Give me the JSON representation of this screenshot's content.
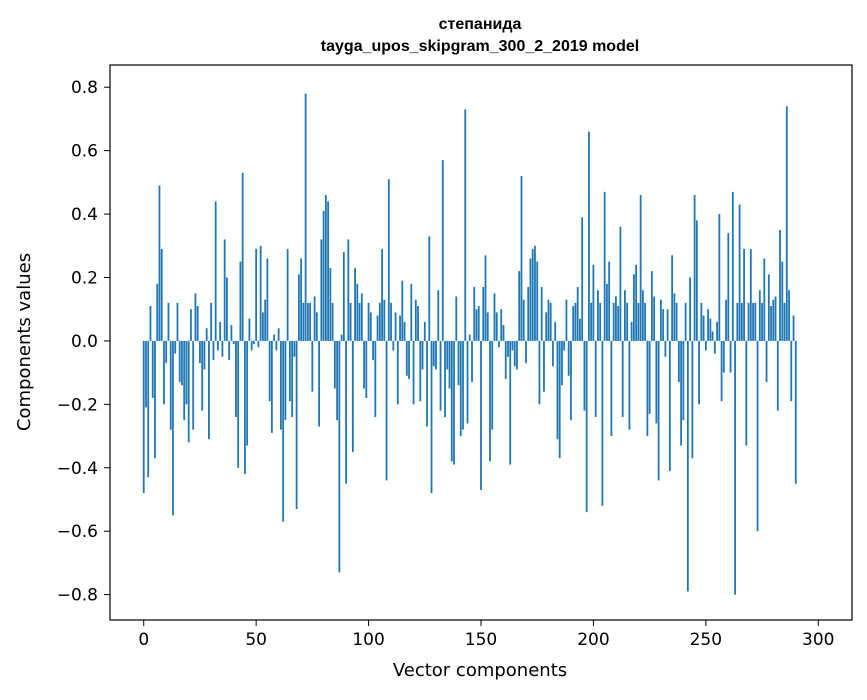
{
  "chart_data": {
    "type": "bar",
    "title": "степанида",
    "subtitle": "tayga_upos_skipgram_300_2_2019 model",
    "xlabel": "Vector components",
    "ylabel": "Components values",
    "xlim": [
      -15,
      315
    ],
    "ylim": [
      -0.88,
      0.87
    ],
    "xticks": [
      0,
      50,
      100,
      150,
      200,
      250,
      300
    ],
    "yticks": [
      -0.8,
      -0.6,
      -0.4,
      -0.2,
      0.0,
      0.2,
      0.4,
      0.6,
      0.8
    ],
    "xtick_labels": [
      "0",
      "50",
      "100",
      "150",
      "200",
      "250",
      "300"
    ],
    "ytick_labels": [
      "−0.8",
      "−0.6",
      "−0.4",
      "−0.2",
      "0.0",
      "0.2",
      "0.4",
      "0.6",
      "0.8"
    ],
    "grid": false,
    "bar_color": "#1f77b4",
    "values": [
      -0.48,
      -0.21,
      -0.43,
      0.11,
      -0.18,
      -0.37,
      0.18,
      0.49,
      0.29,
      -0.2,
      -0.07,
      0.12,
      -0.28,
      -0.55,
      -0.04,
      0.12,
      -0.13,
      -0.14,
      -0.25,
      -0.2,
      -0.32,
      0.1,
      -0.28,
      0.15,
      0.11,
      -0.07,
      -0.22,
      -0.09,
      0.04,
      -0.31,
      0.12,
      -0.06,
      0.44,
      -0.03,
      0.06,
      -0.05,
      0.32,
      0.2,
      -0.06,
      0.05,
      -0.01,
      -0.24,
      -0.4,
      0.25,
      0.53,
      -0.42,
      -0.33,
      0.07,
      -0.03,
      -0.01,
      0.29,
      -0.02,
      0.3,
      0.09,
      0.13,
      0.26,
      -0.19,
      -0.29,
      0.02,
      -0.03,
      0.04,
      -0.28,
      -0.57,
      -0.25,
      0.29,
      -0.19,
      -0.24,
      -0.05,
      -0.53,
      0.21,
      0.26,
      0.12,
      0.78,
      0.12,
      0.12,
      -0.16,
      0.14,
      0.09,
      -0.27,
      0.32,
      0.41,
      0.46,
      0.44,
      0.23,
      0.12,
      -0.15,
      -0.25,
      -0.73,
      0.02,
      0.28,
      -0.45,
      0.32,
      0.12,
      -0.35,
      0.23,
      0.18,
      0.12,
      0.15,
      -0.15,
      -0.18,
      0.12,
      0.09,
      -0.06,
      -0.24,
      0.08,
      0.12,
      0.29,
      0.13,
      -0.44,
      0.51,
      0.12,
      -0.03,
      0.09,
      -0.2,
      0.08,
      0.19,
      0.06,
      -0.11,
      -0.12,
      0.18,
      -0.2,
      0.13,
      0.11,
      -0.19,
      -0.09,
      0.06,
      -0.27,
      0.33,
      -0.48,
      -0.08,
      -0.09,
      0.16,
      -0.22,
      0.57,
      -0.24,
      -0.09,
      -0.15,
      -0.38,
      -0.39,
      0.14,
      -0.14,
      -0.3,
      -0.28,
      0.73,
      -0.26,
      0.02,
      -0.13,
      0.17,
      0.1,
      0.11,
      -0.47,
      0.17,
      0.27,
      0.09,
      -0.38,
      -0.28,
      0.15,
      0.09,
      -0.02,
      0.1,
      0.05,
      -0.12,
      -0.05,
      -0.39,
      -0.03,
      -0.08,
      -0.09,
      0.22,
      0.52,
      0.13,
      -0.07,
      0.17,
      0.26,
      0.29,
      0.3,
      0.25,
      -0.2,
      0.17,
      -0.16,
      0.09,
      0.13,
      0.12,
      -0.08,
      0.06,
      -0.31,
      -0.37,
      -0.14,
      -0.03,
      0.13,
      -0.11,
      -0.25,
      0.11,
      0.12,
      0.17,
      0.07,
      0.39,
      -0.22,
      -0.54,
      0.66,
      0.12,
      0.24,
      -0.24,
      0.16,
      0.12,
      -0.52,
      0.47,
      0.18,
      0.25,
      -0.3,
      0.12,
      0.14,
      0.11,
      0.36,
      -0.24,
      0.16,
      0.12,
      -0.28,
      0.06,
      0.21,
      0.24,
      0.12,
      0.46,
      0.16,
      0.12,
      -0.3,
      -0.23,
      0.22,
      0.14,
      -0.26,
      -0.44,
      0.13,
      0.1,
      -0.05,
      0.1,
      -0.41,
      0.27,
      0.15,
      0.12,
      -0.13,
      -0.33,
      -0.25,
      0.12,
      -0.79,
      0.2,
      -0.37,
      0.46,
      0.38,
      -0.2,
      0.12,
      0.08,
      -0.03,
      0.1,
      0.07,
      0.03,
      -0.04,
      0.06,
      0.4,
      -0.19,
      -0.1,
      0.13,
      0.34,
      -0.1,
      0.47,
      -0.8,
      0.12,
      0.43,
      0.12,
      0.29,
      -0.33,
      0.12,
      0.29,
      0.12,
      0.12,
      -0.6,
      0.16,
      0.12,
      0.26,
      -0.13,
      0.21,
      0.11,
      0.13,
      0.14,
      -0.22,
      0.35,
      0.25,
      0.12,
      0.74,
      0.16,
      -0.19,
      0.08,
      -0.45
    ]
  }
}
